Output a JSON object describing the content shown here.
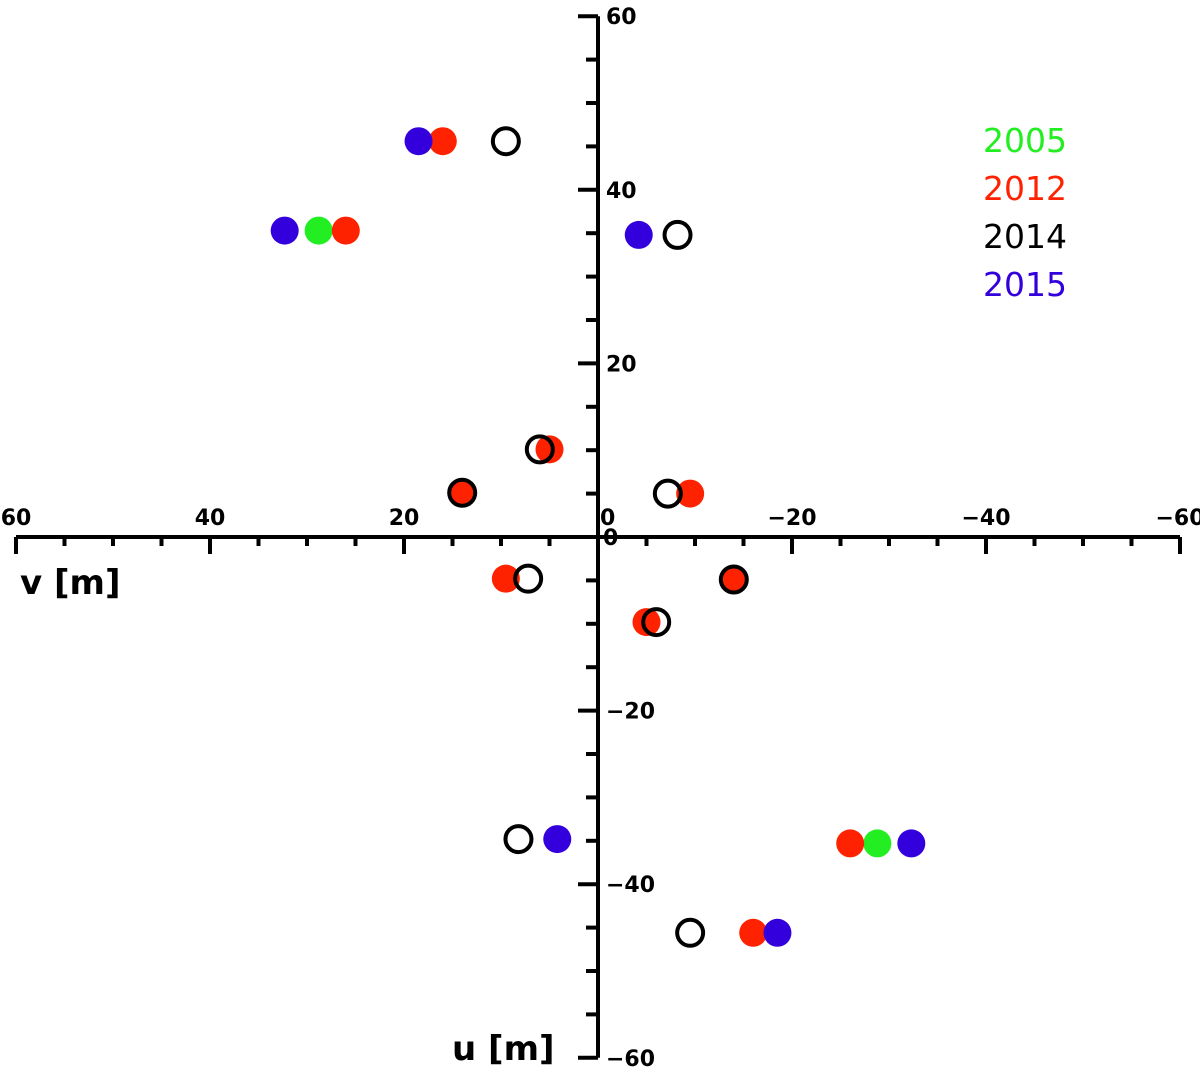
{
  "chart_data": {
    "type": "scatter",
    "title": "",
    "xlabel": "v [m]",
    "ylabel": "u [m]",
    "xlim": [
      60,
      -60
    ],
    "ylim": [
      -60,
      60
    ],
    "x_major_ticks": [
      60,
      40,
      20,
      0,
      -20,
      -40,
      -60
    ],
    "y_major_ticks": [
      60,
      40,
      20,
      0,
      -20,
      -40,
      -60
    ],
    "x_tick_labels": [
      "60",
      "40",
      "20",
      "0",
      "−20",
      "−40",
      "−60"
    ],
    "y_tick_labels": [
      "60",
      "40",
      "20",
      "0",
      "−20",
      "−40",
      "−60"
    ],
    "minor_step": 5,
    "grid": false,
    "legend_position": "top-right",
    "series": [
      {
        "name": "2005",
        "color": "#22ee22",
        "marker": "filled-circle",
        "points": [
          [
            28.8,
            35.3
          ],
          [
            -28.8,
            -35.3
          ]
        ]
      },
      {
        "name": "2012",
        "color": "#ff2200",
        "marker": "filled-circle",
        "points": [
          [
            26.0,
            35.3
          ],
          [
            16.0,
            45.6
          ],
          [
            5.0,
            10.1
          ],
          [
            14.0,
            5.1
          ],
          [
            -9.5,
            5.0
          ],
          [
            9.5,
            -4.8
          ],
          [
            -14.0,
            -4.9
          ],
          [
            -5.0,
            -9.8
          ],
          [
            -26.0,
            -35.3
          ],
          [
            -16.0,
            -45.6
          ]
        ]
      },
      {
        "name": "2014",
        "color": "#000000",
        "marker": "open-circle",
        "points": [
          [
            9.5,
            45.6
          ],
          [
            -8.2,
            34.8
          ],
          [
            6.0,
            10.1
          ],
          [
            14.0,
            5.1
          ],
          [
            -7.2,
            5.0
          ],
          [
            7.2,
            -4.8
          ],
          [
            -14.0,
            -4.9
          ],
          [
            -6.0,
            -9.8
          ],
          [
            8.2,
            -34.8
          ],
          [
            -9.5,
            -45.6
          ]
        ]
      },
      {
        "name": "2015",
        "color": "#3300dd",
        "marker": "filled-circle",
        "points": [
          [
            18.5,
            45.6
          ],
          [
            32.3,
            35.3
          ],
          [
            -4.2,
            34.8
          ],
          [
            4.2,
            -34.8
          ],
          [
            -32.3,
            -35.3
          ],
          [
            -18.5,
            -45.6
          ]
        ]
      }
    ]
  }
}
